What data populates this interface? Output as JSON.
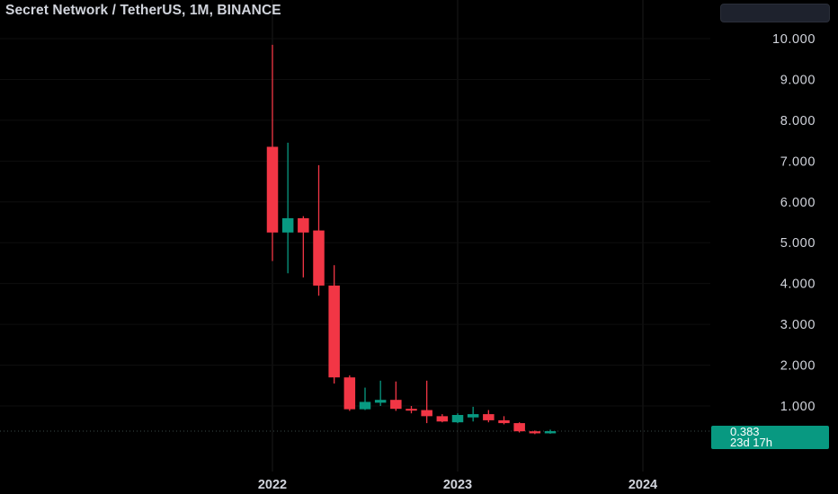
{
  "header": {
    "title": "Secret Network / TetherUS, 1M, BINANCE"
  },
  "price_tag": {
    "price": "0.383",
    "countdown": "23d 17h"
  },
  "colors": {
    "background": "#000000",
    "up": "#089981",
    "down": "#f23645",
    "grid": "#1a1a1a",
    "axis_text": "#d1d4dc"
  },
  "chart_data": {
    "type": "candlestick",
    "title": "Secret Network / TetherUS, 1M, BINANCE",
    "interval": "1M",
    "exchange": "BINANCE",
    "x_ticks": [
      "2022",
      "2023",
      "2024"
    ],
    "y_ticks": [
      "10.000",
      "9.000",
      "8.000",
      "7.000",
      "6.000",
      "5.000",
      "4.000",
      "3.000",
      "2.000",
      "1.000"
    ],
    "ylim": [
      0,
      10.5
    ],
    "last_price": 0.383,
    "candles": [
      {
        "date": "2022-01",
        "open": 7.35,
        "high": 9.85,
        "low": 4.55,
        "close": 5.25
      },
      {
        "date": "2022-02",
        "open": 5.25,
        "high": 7.45,
        "low": 4.25,
        "close": 5.6
      },
      {
        "date": "2022-03",
        "open": 5.6,
        "high": 5.65,
        "low": 4.15,
        "close": 5.25
      },
      {
        "date": "2022-04",
        "open": 5.3,
        "high": 6.9,
        "low": 3.7,
        "close": 3.95
      },
      {
        "date": "2022-05",
        "open": 3.95,
        "high": 4.45,
        "low": 1.55,
        "close": 1.7
      },
      {
        "date": "2022-06",
        "open": 1.7,
        "high": 1.75,
        "low": 0.88,
        "close": 0.92
      },
      {
        "date": "2022-07",
        "open": 0.92,
        "high": 1.45,
        "low": 0.9,
        "close": 1.1
      },
      {
        "date": "2022-08",
        "open": 1.08,
        "high": 1.62,
        "low": 1.0,
        "close": 1.15
      },
      {
        "date": "2022-09",
        "open": 1.15,
        "high": 1.6,
        "low": 0.88,
        "close": 0.93
      },
      {
        "date": "2022-10",
        "open": 0.93,
        "high": 1.0,
        "low": 0.82,
        "close": 0.9
      },
      {
        "date": "2022-11",
        "open": 0.9,
        "high": 1.62,
        "low": 0.58,
        "close": 0.75
      },
      {
        "date": "2022-12",
        "open": 0.75,
        "high": 0.8,
        "low": 0.6,
        "close": 0.62
      },
      {
        "date": "2023-01",
        "open": 0.6,
        "high": 0.82,
        "low": 0.58,
        "close": 0.78
      },
      {
        "date": "2023-02",
        "open": 0.72,
        "high": 0.98,
        "low": 0.62,
        "close": 0.8
      },
      {
        "date": "2023-03",
        "open": 0.8,
        "high": 0.9,
        "low": 0.6,
        "close": 0.65
      },
      {
        "date": "2023-04",
        "open": 0.65,
        "high": 0.75,
        "low": 0.55,
        "close": 0.58
      },
      {
        "date": "2023-05",
        "open": 0.58,
        "high": 0.6,
        "low": 0.35,
        "close": 0.38
      },
      {
        "date": "2023-06",
        "open": 0.38,
        "high": 0.4,
        "low": 0.31,
        "close": 0.33
      },
      {
        "date": "2023-07",
        "open": 0.33,
        "high": 0.42,
        "low": 0.32,
        "close": 0.383
      }
    ]
  }
}
